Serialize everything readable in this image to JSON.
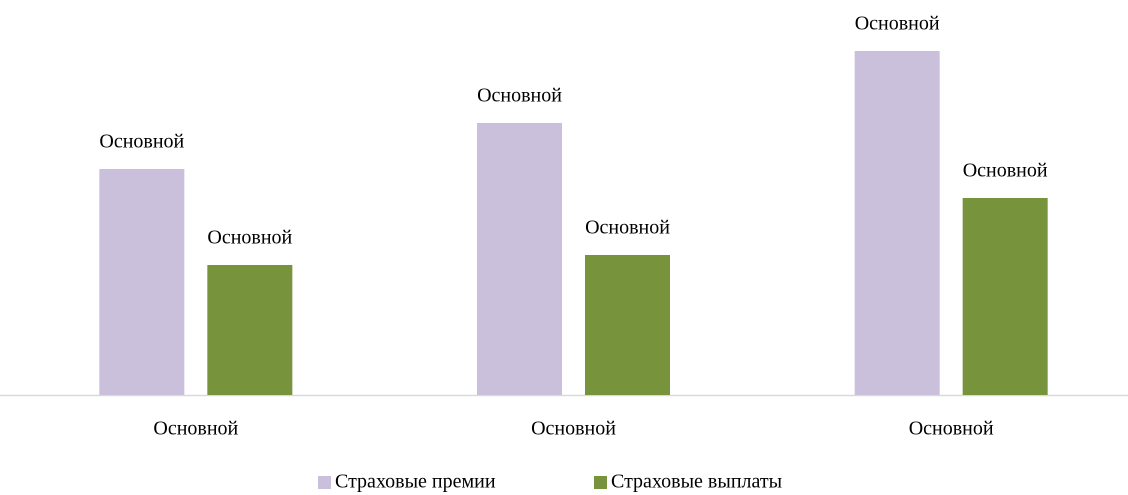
{
  "chart_data": {
    "type": "bar",
    "categories": [
      "Основной",
      "Основной",
      "Основной"
    ],
    "series": [
      {
        "name": "Страховые премии",
        "color": "#cbc0dc",
        "values": [
          226,
          272,
          344
        ],
        "value_labels": [
          "Основной",
          "Основной",
          "Основной"
        ]
      },
      {
        "name": "Страховые выплаты",
        "color": "#77933c",
        "values": [
          130,
          140,
          197
        ],
        "value_labels": [
          "Основной",
          "Основной",
          "Основной"
        ]
      }
    ]
  }
}
